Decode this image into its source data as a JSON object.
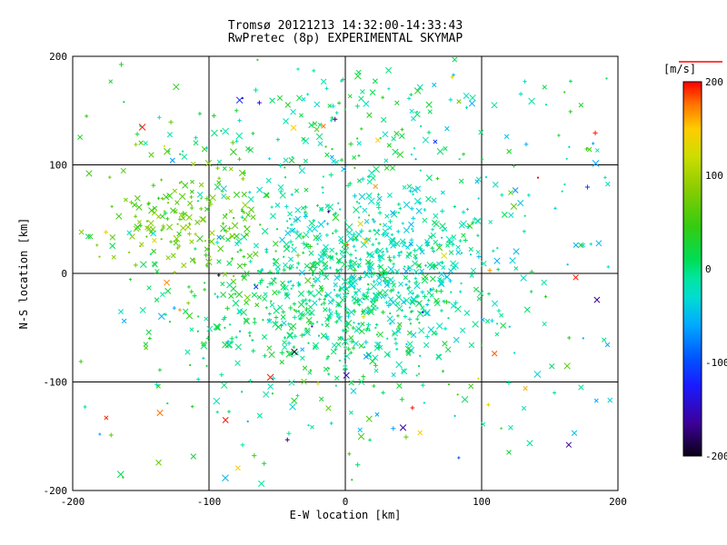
{
  "chart_data": {
    "type": "scatter",
    "title": "Tromsø 20121213 14:32:00-14:33:43",
    "subtitle": "RwPretec (8p) EXPERIMENTAL SKYMAP",
    "xlabel": "E-W location [km]",
    "ylabel": "N-S location [km]",
    "xlim": [
      -200,
      200
    ],
    "ylim": [
      -200,
      200
    ],
    "xticks": [
      -200,
      -100,
      0,
      100,
      200
    ],
    "yticks": [
      -200,
      -100,
      0,
      100,
      200
    ],
    "grid": true,
    "title_color": "#6b7d00",
    "axis_color": "#000000",
    "frame_color": "#000000",
    "marker_style": "small x and + crosses colored by Doppler velocity",
    "seed": 20121213,
    "colorbar": {
      "label": "[m/s]",
      "label_color": "#dd4400",
      "top_marker_color": "#ff0000",
      "ticks": [
        200,
        100,
        0,
        -100,
        -200
      ],
      "vmin": -200,
      "vmax": 200,
      "stops": [
        {
          "v": -200,
          "c": "#0a0014"
        },
        {
          "v": -165,
          "c": "#3d0099"
        },
        {
          "v": -125,
          "c": "#1a1aff"
        },
        {
          "v": -95,
          "c": "#0055ff"
        },
        {
          "v": -60,
          "c": "#00aaff"
        },
        {
          "v": -30,
          "c": "#00ddd0"
        },
        {
          "v": -10,
          "c": "#00e6a0"
        },
        {
          "v": 10,
          "c": "#00dd55"
        },
        {
          "v": 45,
          "c": "#33cc11"
        },
        {
          "v": 85,
          "c": "#88cc00"
        },
        {
          "v": 120,
          "c": "#ccdd00"
        },
        {
          "v": 150,
          "c": "#ffcc00"
        },
        {
          "v": 175,
          "c": "#ff7700"
        },
        {
          "v": 200,
          "c": "#ff0000"
        }
      ]
    },
    "clusters": [
      {
        "name": "core-cyan",
        "type": "gauss",
        "cx": 25,
        "cy": 5,
        "sx": 38,
        "sy": 42,
        "count": 520,
        "vmin": -45,
        "vmax": 5
      },
      {
        "name": "core-green",
        "type": "gauss",
        "cx": -15,
        "cy": -35,
        "sx": 55,
        "sy": 38,
        "count": 380,
        "vmin": -15,
        "vmax": 35
      },
      {
        "name": "west-yellowgreen",
        "type": "gauss",
        "cx": -115,
        "cy": 50,
        "sx": 32,
        "sy": 28,
        "count": 175,
        "vmin": 35,
        "vmax": 95
      },
      {
        "name": "north-sparse",
        "type": "gauss",
        "cx": 5,
        "cy": 115,
        "sx": 70,
        "sy": 42,
        "count": 130,
        "vmin": -35,
        "vmax": 45
      },
      {
        "name": "background",
        "type": "uniform",
        "x0": -195,
        "x1": 195,
        "y0": -195,
        "y1": 195,
        "count": 260,
        "vmin": -70,
        "vmax": 70
      },
      {
        "name": "warm-outliers",
        "type": "uniform",
        "x0": -185,
        "x1": 190,
        "y0": -180,
        "y1": 185,
        "count": 34,
        "vmin": 125,
        "vmax": 200
      },
      {
        "name": "cold-outliers",
        "type": "uniform",
        "x0": -180,
        "x1": 185,
        "y0": -170,
        "y1": 180,
        "count": 18,
        "vmin": -200,
        "vmax": -90
      }
    ]
  }
}
